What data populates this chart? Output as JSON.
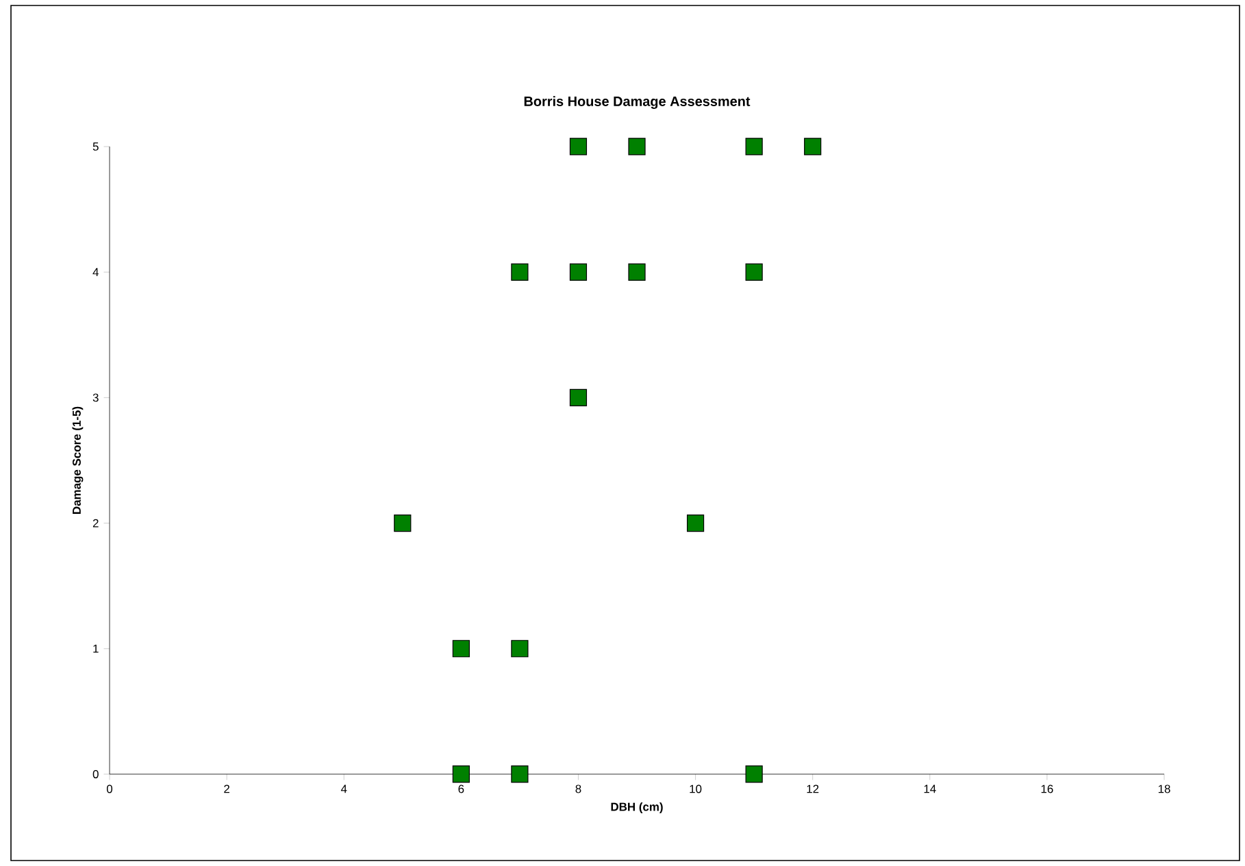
{
  "chart_data": {
    "type": "scatter",
    "title": "Borris House Damage Assessment",
    "xlabel": "DBH (cm)",
    "ylabel": "Damage Score (1-5)",
    "x": [
      8,
      9,
      11,
      12,
      7,
      8,
      9,
      11,
      8,
      5,
      10,
      6,
      7,
      6,
      7,
      11
    ],
    "values": [
      5,
      5,
      5,
      5,
      4,
      4,
      4,
      4,
      3,
      2,
      2,
      1,
      1,
      0,
      0,
      0
    ],
    "color": "#008000",
    "marker": "square",
    "xlim": [
      0,
      18
    ],
    "xticks": [
      0,
      2,
      4,
      6,
      8,
      10,
      12,
      14,
      16,
      18
    ],
    "ylim": [
      0,
      5
    ],
    "yticks": [
      0,
      1,
      2,
      3,
      4,
      5
    ],
    "grid": false
  }
}
